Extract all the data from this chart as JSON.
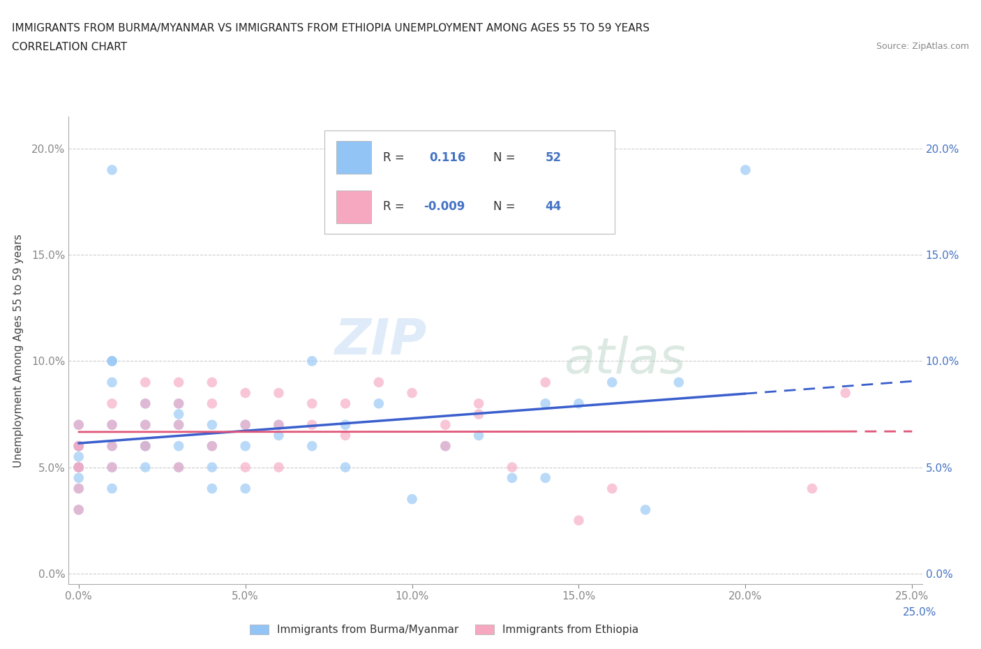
{
  "title_line1": "IMMIGRANTS FROM BURMA/MYANMAR VS IMMIGRANTS FROM ETHIOPIA UNEMPLOYMENT AMONG AGES 55 TO 59 YEARS",
  "title_line2": "CORRELATION CHART",
  "source_text": "Source: ZipAtlas.com",
  "ylabel": "Unemployment Among Ages 55 to 59 years",
  "xlim": [
    -0.003,
    0.253
  ],
  "ylim": [
    -0.005,
    0.215
  ],
  "xticks": [
    0.0,
    0.05,
    0.1,
    0.15,
    0.2,
    0.25
  ],
  "xticklabels": [
    "0.0%",
    "5.0%",
    "10.0%",
    "15.0%",
    "20.0%",
    "25.0%"
  ],
  "yticks": [
    0.0,
    0.05,
    0.1,
    0.15,
    0.2
  ],
  "yticklabels": [
    "0.0%",
    "5.0%",
    "10.0%",
    "15.0%",
    "20.0%"
  ],
  "watermark_zip": "ZIP",
  "watermark_atlas": "atlas",
  "color_burma": "#92c5f5",
  "color_ethiopia": "#f5a8c0",
  "color_burma_line": "#3a5fcd",
  "color_ethiopia_line": "#e05577",
  "color_right_ticks": "#4472c4",
  "color_grid": "#cccccc",
  "color_axis": "#aaaaaa",
  "legend_box_color": "#dddddd",
  "burma_x": [
    0.0,
    0.0,
    0.0,
    0.0,
    0.0,
    0.0,
    0.0,
    0.0,
    0.0,
    0.01,
    0.01,
    0.01,
    0.01,
    0.01,
    0.01,
    0.01,
    0.02,
    0.02,
    0.02,
    0.02,
    0.02,
    0.03,
    0.03,
    0.03,
    0.03,
    0.03,
    0.04,
    0.04,
    0.04,
    0.04,
    0.05,
    0.05,
    0.05,
    0.06,
    0.06,
    0.07,
    0.07,
    0.08,
    0.08,
    0.09,
    0.1,
    0.11,
    0.12,
    0.13,
    0.14,
    0.14,
    0.15,
    0.16,
    0.17,
    0.18,
    0.2,
    0.01
  ],
  "burma_y": [
    0.05,
    0.06,
    0.055,
    0.04,
    0.05,
    0.06,
    0.07,
    0.03,
    0.045,
    0.1,
    0.1,
    0.05,
    0.06,
    0.07,
    0.04,
    0.09,
    0.06,
    0.07,
    0.08,
    0.06,
    0.05,
    0.075,
    0.07,
    0.06,
    0.05,
    0.08,
    0.06,
    0.04,
    0.05,
    0.07,
    0.06,
    0.07,
    0.04,
    0.065,
    0.07,
    0.06,
    0.1,
    0.07,
    0.05,
    0.08,
    0.035,
    0.06,
    0.065,
    0.045,
    0.08,
    0.045,
    0.08,
    0.09,
    0.03,
    0.09,
    0.19,
    0.19
  ],
  "ethiopia_x": [
    0.0,
    0.0,
    0.0,
    0.0,
    0.0,
    0.0,
    0.0,
    0.01,
    0.01,
    0.01,
    0.01,
    0.02,
    0.02,
    0.02,
    0.02,
    0.03,
    0.03,
    0.03,
    0.03,
    0.04,
    0.04,
    0.04,
    0.05,
    0.05,
    0.05,
    0.06,
    0.06,
    0.06,
    0.07,
    0.07,
    0.08,
    0.08,
    0.09,
    0.1,
    0.11,
    0.11,
    0.12,
    0.12,
    0.13,
    0.14,
    0.15,
    0.16,
    0.22,
    0.23
  ],
  "ethiopia_y": [
    0.05,
    0.06,
    0.04,
    0.05,
    0.07,
    0.03,
    0.06,
    0.07,
    0.08,
    0.05,
    0.06,
    0.08,
    0.09,
    0.06,
    0.07,
    0.08,
    0.07,
    0.09,
    0.05,
    0.08,
    0.09,
    0.06,
    0.085,
    0.05,
    0.07,
    0.07,
    0.085,
    0.05,
    0.08,
    0.07,
    0.065,
    0.08,
    0.09,
    0.085,
    0.07,
    0.06,
    0.075,
    0.08,
    0.05,
    0.09,
    0.025,
    0.04,
    0.04,
    0.085
  ]
}
